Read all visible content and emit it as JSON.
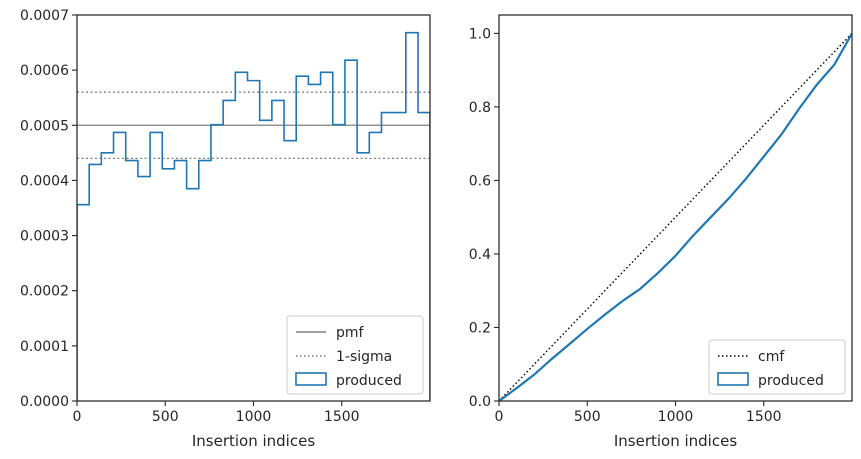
{
  "chart_data": [
    {
      "type": "step",
      "xlabel": "Insertion indices",
      "ylabel": "",
      "xlim": [
        0,
        2000
      ],
      "ylim": [
        0,
        0.0007
      ],
      "x_ticks": [
        0,
        500,
        1000,
        1500
      ],
      "y_ticks": [
        "0.0000",
        "0.0001",
        "0.0002",
        "0.0003",
        "0.0004",
        "0.0005",
        "0.0006",
        "0.0007"
      ],
      "y_tick_values": [
        0,
        0.0001,
        0.0002,
        0.0003,
        0.0004,
        0.0005,
        0.0006,
        0.0007
      ],
      "bin_edges": [
        0,
        69,
        138,
        207,
        276,
        345,
        414,
        483,
        552,
        621,
        690,
        759,
        828,
        897,
        966,
        1035,
        1104,
        1173,
        1242,
        1311,
        1380,
        1449,
        1518,
        1587,
        1656,
        1725,
        1794,
        1863,
        1932,
        2000
      ],
      "series": [
        {
          "name": "produced",
          "values": [
            0.000356,
            0.000429,
            0.00045,
            0.000487,
            0.000436,
            0.000407,
            0.000487,
            0.000421,
            0.000436,
            0.000385,
            0.000436,
            0.000501,
            0.000545,
            0.000596,
            0.000581,
            0.000509,
            0.000545,
            0.000472,
            0.000589,
            0.000574,
            0.000596,
            0.000501,
            0.000618,
            0.00045,
            0.000487,
            0.000523,
            0.000523,
            0.000668,
            0.000523
          ],
          "color": "#1f77b4"
        }
      ],
      "reference_lines": [
        {
          "name": "pmf",
          "y": 0.0005,
          "style": "solid",
          "color": "#808080"
        },
        {
          "name": "1-sigma",
          "y": [
            0.00044,
            0.00056
          ],
          "style": "dotted",
          "color": "#808080"
        }
      ],
      "legend": {
        "position": "bottom-right",
        "entries": [
          "pmf",
          "1-sigma",
          "produced"
        ]
      },
      "grid": false
    },
    {
      "type": "line",
      "xlabel": "Insertion indices",
      "ylabel": "",
      "xlim": [
        0,
        2000
      ],
      "ylim": [
        0,
        1.05
      ],
      "x_ticks": [
        0,
        500,
        1000,
        1500
      ],
      "y_ticks": [
        "0.0",
        "0.2",
        "0.4",
        "0.6",
        "0.8",
        "1.0"
      ],
      "y_tick_values": [
        0,
        0.2,
        0.4,
        0.6,
        0.8,
        1.0
      ],
      "series": [
        {
          "name": "cmf",
          "x": [
            0,
            2000
          ],
          "y": [
            0,
            1.0
          ],
          "style": "dotted",
          "color": "#000000"
        },
        {
          "name": "produced",
          "x": [
            0,
            100,
            200,
            300,
            400,
            500,
            600,
            700,
            800,
            900,
            1000,
            1100,
            1200,
            1300,
            1400,
            1500,
            1600,
            1700,
            1800,
            1900,
            2000
          ],
          "y": [
            0,
            0.035,
            0.072,
            0.115,
            0.155,
            0.196,
            0.235,
            0.272,
            0.305,
            0.348,
            0.395,
            0.45,
            0.5,
            0.55,
            0.605,
            0.665,
            0.725,
            0.795,
            0.86,
            0.915,
            1.0
          ],
          "style": "solid",
          "color": "#1f77b4"
        }
      ],
      "legend": {
        "position": "bottom-right",
        "entries": [
          "cmf",
          "produced"
        ]
      },
      "grid": false
    }
  ]
}
